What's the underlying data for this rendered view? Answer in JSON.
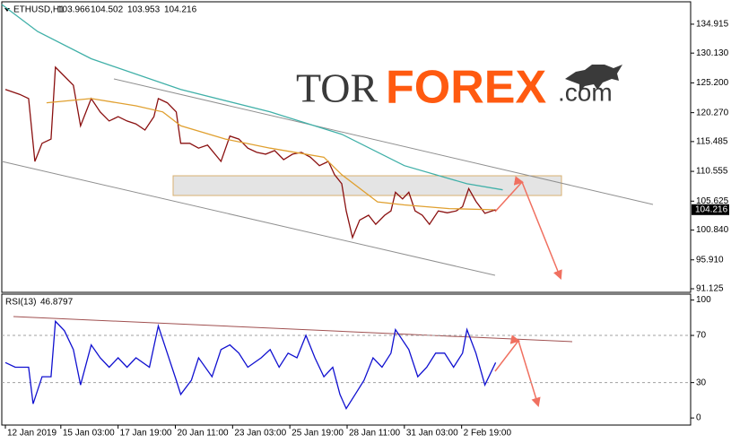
{
  "chart_data": [
    {
      "type": "line",
      "title": "ETHUSD,H1",
      "ohlc": [
        103.966,
        104.502,
        103.953,
        104.216
      ],
      "last_price": 104.216,
      "xlim": [
        9,
        779
      ],
      "ylim": [
        90.53,
        138.62
      ],
      "yticks": [
        {
          "value": 134.915,
          "label": "134.915"
        },
        {
          "value": 130.13,
          "label": "130.130"
        },
        {
          "value": 125.2,
          "label": "125.200"
        },
        {
          "value": 120.27,
          "label": "120.270"
        },
        {
          "value": 115.485,
          "label": "115.485"
        },
        {
          "value": 110.555,
          "label": "110.555"
        },
        {
          "value": 105.625,
          "label": "105.625"
        },
        {
          "value": 100.84,
          "label": "100.840"
        },
        {
          "value": 95.91,
          "label": "95.910"
        },
        {
          "value": 91.125,
          "label": "91.125"
        }
      ],
      "series": [
        {
          "color": "#8a1010",
          "x": [
            13,
            29,
            39,
            46,
            54,
            64,
            69,
            79,
            89,
            97,
            109,
            119,
            129,
            139,
            149,
            159,
            169,
            179,
            184,
            194,
            204,
            209,
            219,
            229,
            239,
            254,
            264,
            274,
            284,
            294,
            304,
            314,
            324,
            334,
            344,
            354,
            364,
            374,
            381,
            389,
            394,
            401,
            409,
            419,
            427,
            437,
            444,
            449,
            457,
            464,
            471,
            479,
            487,
            497,
            507,
            517,
            524,
            531,
            539,
            549,
            561
          ],
          "values": [
            124.1,
            123.3,
            122.6,
            112.2,
            115.2,
            115.9,
            127.8,
            126.3,
            124.8,
            118.1,
            122.6,
            120.4,
            118.9,
            119.6,
            118.9,
            118.4,
            117.4,
            119.6,
            122.6,
            121.9,
            120.4,
            115.2,
            115.2,
            114.4,
            114.9,
            112.2,
            116.4,
            115.9,
            114.4,
            113.7,
            113.4,
            114.0,
            112.5,
            113.4,
            113.7,
            112.9,
            111.5,
            112.2,
            110.0,
            108.5,
            104.0,
            99.6,
            102.5,
            103.3,
            101.8,
            103.3,
            104.0,
            107.1,
            106.0,
            107.1,
            104.0,
            103.3,
            101.8,
            104.0,
            103.7,
            104.0,
            104.7,
            107.7,
            105.6,
            103.6,
            104.2
          ]
        },
        {
          "color": "#e0a030",
          "x": [
            59,
            109,
            159,
            189,
            209,
            259,
            309,
            369,
            389,
            429,
            459,
            509,
            559
          ],
          "values": [
            121.9,
            122.6,
            121.4,
            120.4,
            118.1,
            115.9,
            114.4,
            112.9,
            110.0,
            105.5,
            105.0,
            104.4,
            104.2
          ]
        },
        {
          "color": "#40b0a8",
          "x": [
            9,
            49,
            109,
            209,
            309,
            389,
            459,
            529,
            569
          ],
          "values": [
            138.18,
            133.7,
            129.2,
            124.1,
            120.4,
            116.7,
            111.5,
            108.5,
            107.5
          ]
        }
      ]
    },
    {
      "type": "line",
      "title": "RSI(13)",
      "last_value": 46.8797,
      "xlim": [
        9,
        779
      ],
      "ylim": [
        -6,
        105
      ],
      "yticks": [
        100,
        70,
        30,
        0
      ],
      "dashed_levels": [
        70,
        30
      ],
      "xticks": [
        {
          "value": 13,
          "label": "12 Jan 2019"
        },
        {
          "value": 75,
          "label": "15 Jan 03:00"
        },
        {
          "value": 139,
          "label": "17 Jan 19:00"
        },
        {
          "value": 203,
          "label": "20 Jan 11:00"
        },
        {
          "value": 267,
          "label": "23 Jan 03:00"
        },
        {
          "value": 331,
          "label": "25 Jan 19:00"
        },
        {
          "value": 395,
          "label": "28 Jan 11:00"
        },
        {
          "value": 459,
          "label": "31 Jan 03:00"
        },
        {
          "value": 523,
          "label": "2 Feb 19:00"
        }
      ],
      "series": [
        {
          "color": "#1010d0",
          "x": [
            13,
            24,
            39,
            44,
            54,
            64,
            69,
            79,
            89,
            97,
            109,
            119,
            129,
            139,
            149,
            159,
            174,
            184,
            194,
            204,
            209,
            221,
            229,
            244,
            254,
            264,
            274,
            284,
            299,
            309,
            319,
            329,
            339,
            349,
            359,
            369,
            379,
            387,
            394,
            404,
            414,
            424,
            434,
            444,
            449,
            457,
            464,
            474,
            484,
            494,
            504,
            514,
            524,
            529,
            539,
            549,
            561
          ],
          "values": [
            47,
            43,
            43,
            12,
            35,
            35,
            82,
            74,
            58,
            28,
            62,
            51,
            43,
            51,
            43,
            51,
            43,
            78,
            55,
            32,
            20,
            32,
            51,
            35,
            58,
            62,
            55,
            43,
            51,
            58,
            43,
            55,
            51,
            70,
            51,
            35,
            43,
            20,
            8,
            20,
            32,
            51,
            43,
            55,
            75,
            66,
            58,
            35,
            43,
            55,
            55,
            43,
            55,
            75,
            55,
            28,
            47
          ]
        }
      ]
    }
  ],
  "logo": {
    "part1": "TOR",
    "part2": "FOREX",
    "part3": ".com"
  }
}
